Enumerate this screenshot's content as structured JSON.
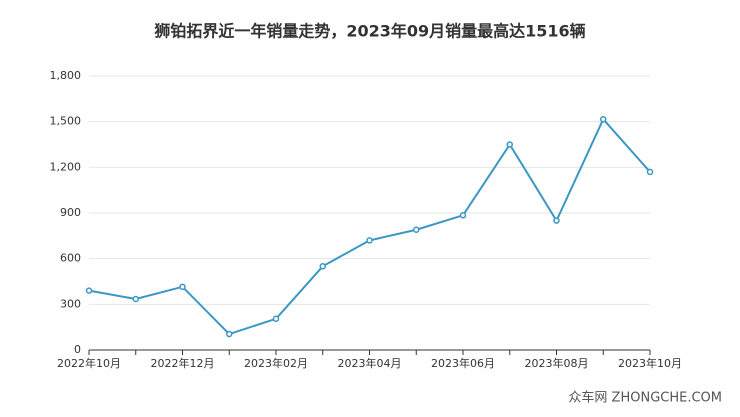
{
  "chart_data": {
    "type": "line",
    "title": "狮铂拓界近一年销量走势，2023年09月销量最高达1516辆",
    "categories": [
      "2022年10月",
      null,
      "2022年12月",
      null,
      "2023年02月",
      null,
      "2023年04月",
      null,
      "2023年06月",
      null,
      "2023年08月",
      null,
      "2023年10月"
    ],
    "series": [
      {
        "name": "销量",
        "color": "#3a97c4",
        "values": [
          390,
          335,
          415,
          105,
          205,
          550,
          720,
          790,
          885,
          1350,
          850,
          1516,
          1170
        ]
      }
    ],
    "ylim": [
      0,
      1800
    ],
    "yticks": [
      0,
      300,
      600,
      900,
      {
        "value": 1200,
        "label": "1,200"
      },
      {
        "value": 1500,
        "label": "1,500"
      },
      {
        "value": 1800,
        "label": "1,800"
      }
    ],
    "grid": true
  },
  "watermark": "众车网 ZHONGCHE.COM"
}
